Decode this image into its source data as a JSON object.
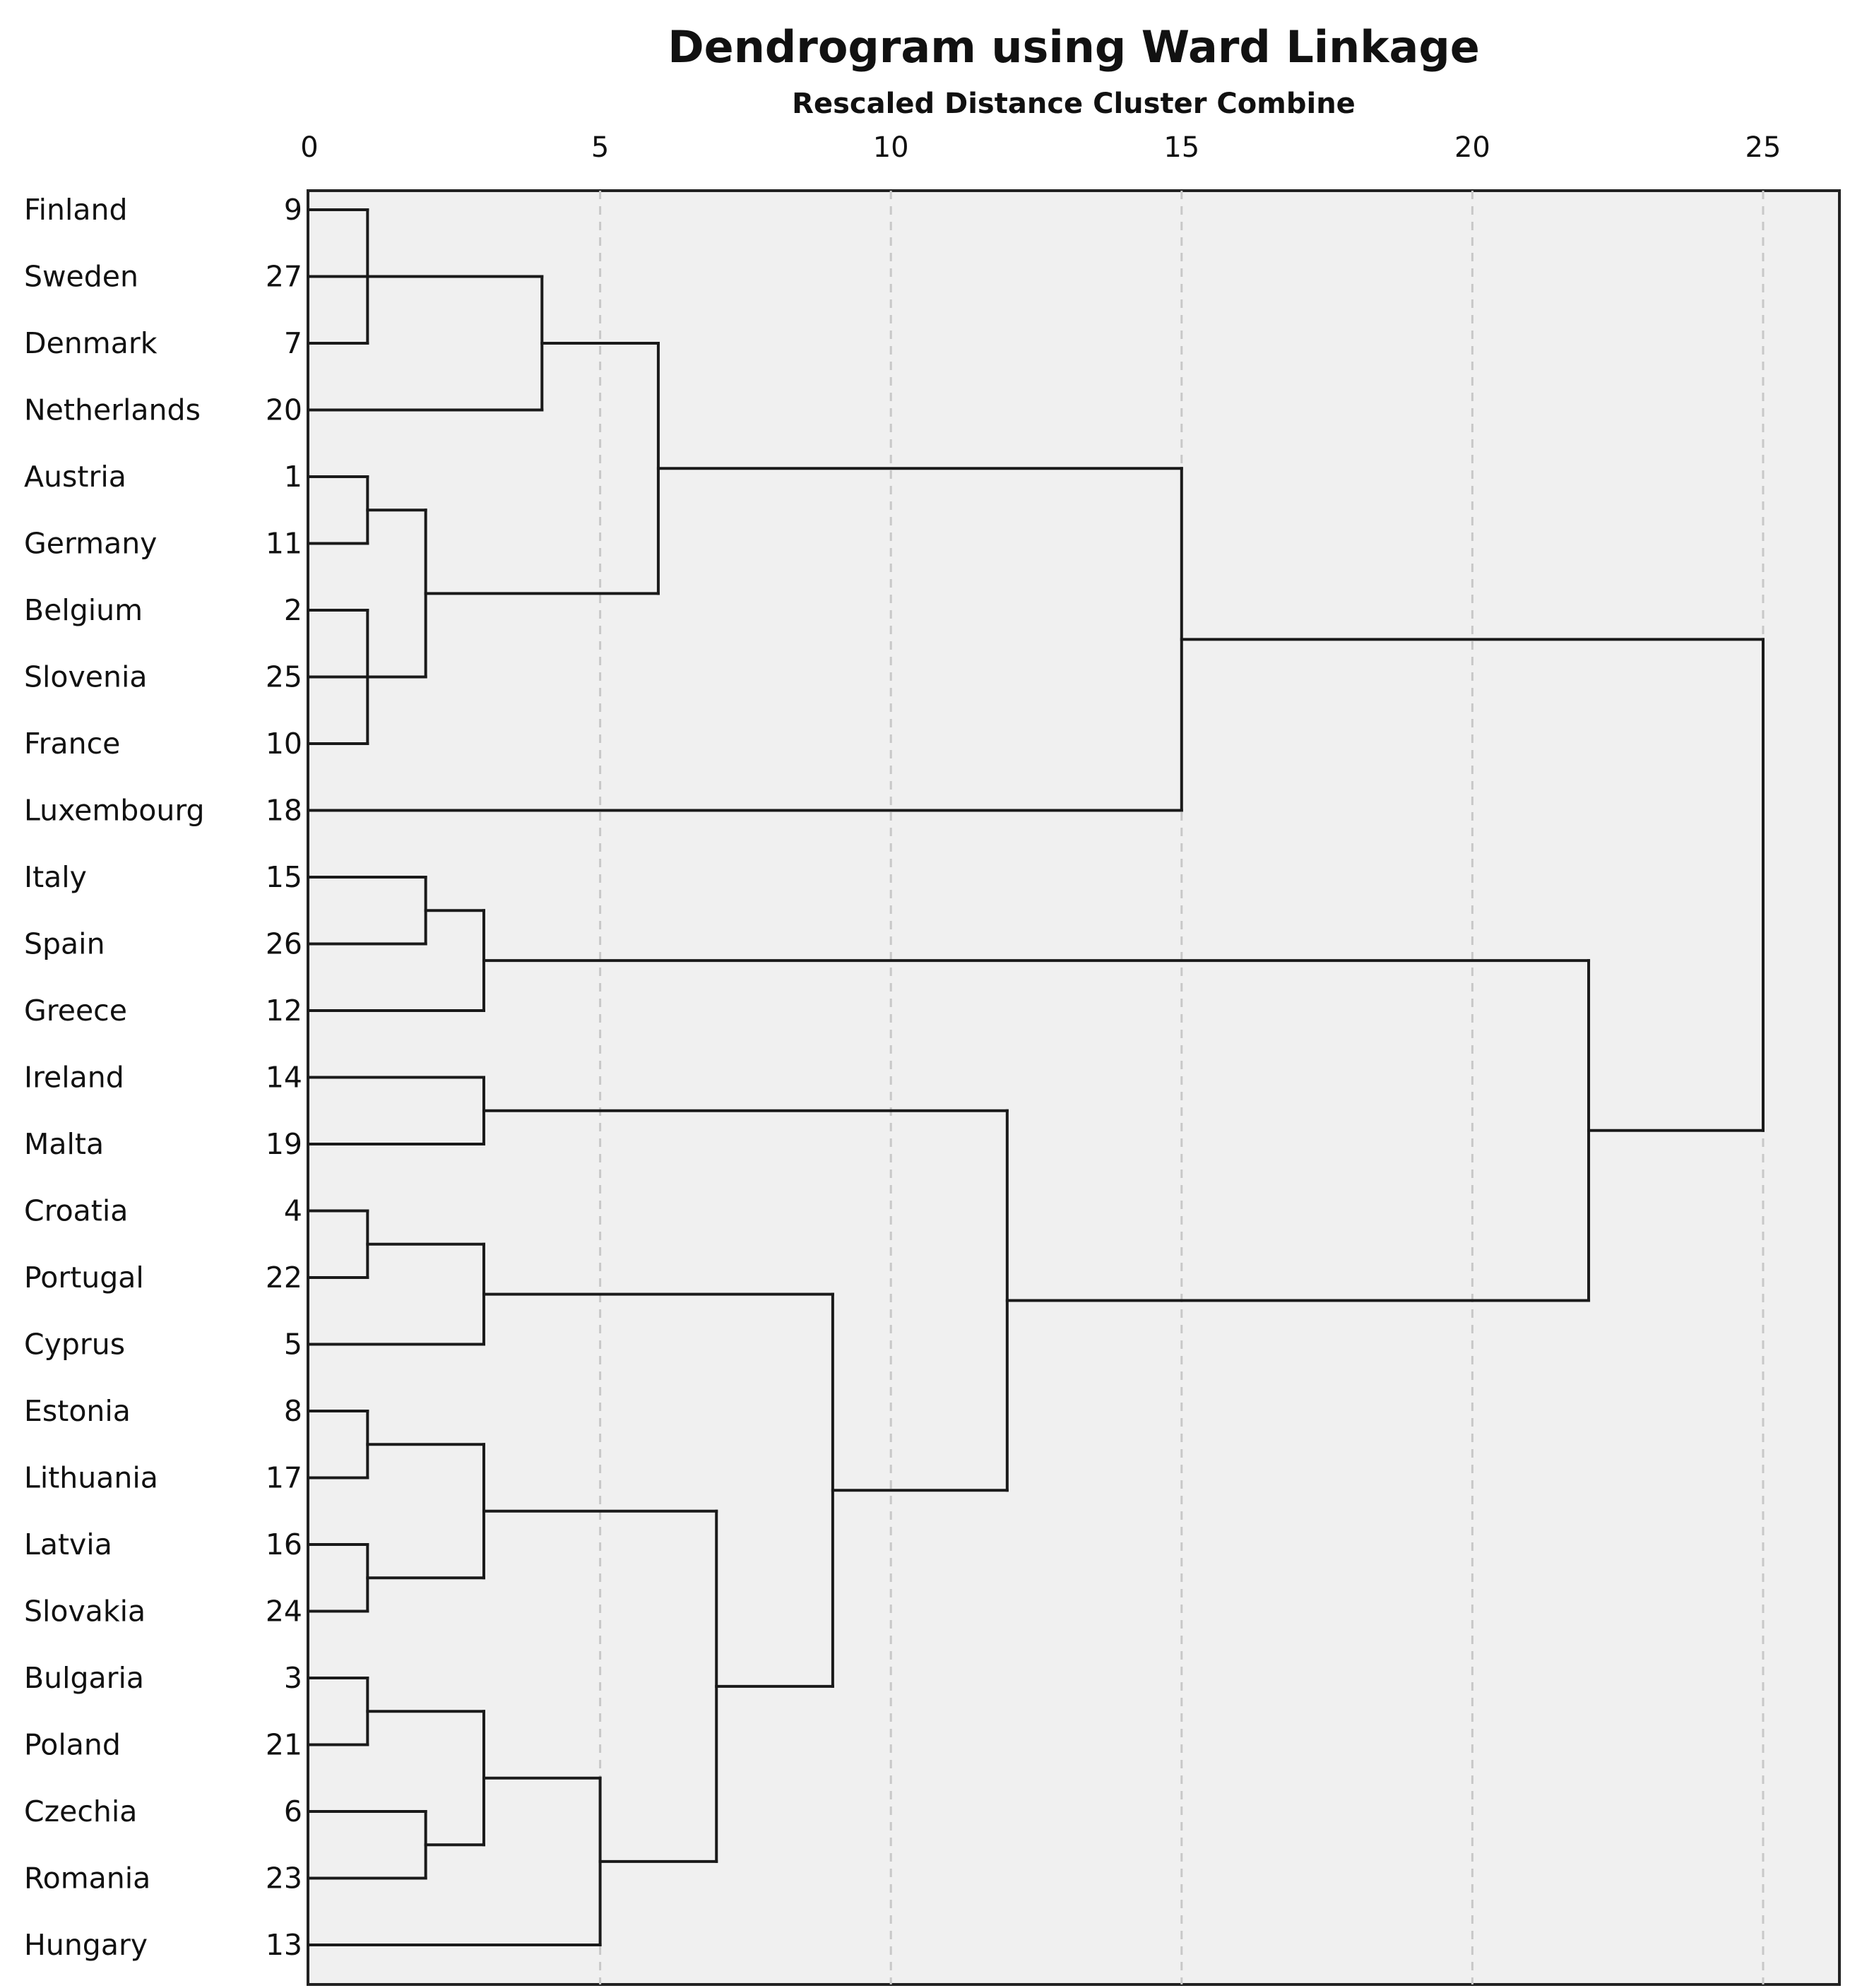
{
  "chart_data": {
    "type": "dendrogram",
    "title": "Dendrogram using Ward Linkage",
    "subtitle": "Rescaled Distance Cluster Combine",
    "xlim": [
      0,
      25
    ],
    "ticks": [
      0,
      5,
      10,
      15,
      20,
      25
    ],
    "tick_labels": [
      "0",
      "5",
      "10",
      "15",
      "20",
      "25"
    ],
    "grid": true,
    "leaves": [
      {
        "label": "Finland",
        "id": "9"
      },
      {
        "label": "Sweden",
        "id": "27"
      },
      {
        "label": "Denmark",
        "id": "7"
      },
      {
        "label": "Netherlands",
        "id": "20"
      },
      {
        "label": "Austria",
        "id": "1"
      },
      {
        "label": "Germany",
        "id": "11"
      },
      {
        "label": "Belgium",
        "id": "2"
      },
      {
        "label": "Slovenia",
        "id": "25"
      },
      {
        "label": "France",
        "id": "10"
      },
      {
        "label": "Luxembourg",
        "id": "18"
      },
      {
        "label": "Italy",
        "id": "15"
      },
      {
        "label": "Spain",
        "id": "26"
      },
      {
        "label": "Greece",
        "id": "12"
      },
      {
        "label": "Ireland",
        "id": "14"
      },
      {
        "label": "Malta",
        "id": "19"
      },
      {
        "label": "Croatia",
        "id": "4"
      },
      {
        "label": "Portugal",
        "id": "22"
      },
      {
        "label": "Cyprus",
        "id": "5"
      },
      {
        "label": "Estonia",
        "id": "8"
      },
      {
        "label": "Lithuania",
        "id": "17"
      },
      {
        "label": "Latvia",
        "id": "16"
      },
      {
        "label": "Slovakia",
        "id": "24"
      },
      {
        "label": "Bulgaria",
        "id": "3"
      },
      {
        "label": "Poland",
        "id": "21"
      },
      {
        "label": "Czechia",
        "id": "6"
      },
      {
        "label": "Romania",
        "id": "23"
      },
      {
        "label": "Hungary",
        "id": "13"
      }
    ],
    "merges": [
      {
        "name": "m1",
        "children": [
          0,
          2
        ],
        "height": 1
      },
      {
        "name": "m2",
        "children": [
          "m1",
          1
        ],
        "height": 1
      },
      {
        "name": "m3",
        "children": [
          "m2",
          3
        ],
        "height": 4
      },
      {
        "name": "m4",
        "children": [
          4,
          5
        ],
        "height": 1
      },
      {
        "name": "m5",
        "children": [
          6,
          8
        ],
        "height": 1
      },
      {
        "name": "m6",
        "children": [
          "m5",
          7
        ],
        "height": 1
      },
      {
        "name": "m7",
        "children": [
          "m4",
          "m6"
        ],
        "height": 2
      },
      {
        "name": "m8",
        "children": [
          "m3",
          "m7"
        ],
        "height": 6
      },
      {
        "name": "m9",
        "children": [
          "m8",
          9
        ],
        "height": 15
      },
      {
        "name": "m10",
        "children": [
          10,
          11
        ],
        "height": 2
      },
      {
        "name": "m11",
        "children": [
          "m10",
          12
        ],
        "height": 3
      },
      {
        "name": "m12",
        "children": [
          13,
          14
        ],
        "height": 3
      },
      {
        "name": "m13",
        "children": [
          15,
          16
        ],
        "height": 1
      },
      {
        "name": "m14",
        "children": [
          "m13",
          17
        ],
        "height": 3
      },
      {
        "name": "m15",
        "children": [
          18,
          19
        ],
        "height": 1
      },
      {
        "name": "m16",
        "children": [
          20,
          21
        ],
        "height": 1
      },
      {
        "name": "m17",
        "children": [
          "m15",
          "m16"
        ],
        "height": 3
      },
      {
        "name": "m18",
        "children": [
          22,
          23
        ],
        "height": 1
      },
      {
        "name": "m19",
        "children": [
          24,
          25
        ],
        "height": 2
      },
      {
        "name": "m20",
        "children": [
          "m18",
          "m19"
        ],
        "height": 3
      },
      {
        "name": "m21",
        "children": [
          "m20",
          26
        ],
        "height": 5
      },
      {
        "name": "m22",
        "children": [
          "m17",
          "m21"
        ],
        "height": 7
      },
      {
        "name": "m23",
        "children": [
          "m14",
          "m22"
        ],
        "height": 9
      },
      {
        "name": "m24",
        "children": [
          "m12",
          "m23"
        ],
        "height": 12
      },
      {
        "name": "m25",
        "children": [
          "m11",
          "m24"
        ],
        "height": 22
      },
      {
        "name": "m26",
        "children": [
          "m9",
          "m25"
        ],
        "height": 25
      }
    ]
  }
}
